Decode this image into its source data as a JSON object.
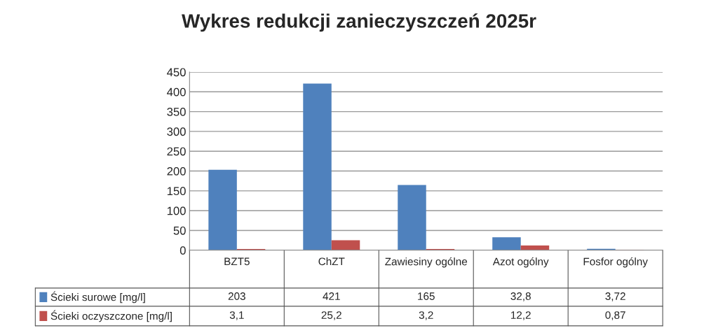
{
  "chart_data": {
    "type": "bar",
    "title": "Wykres redukcji zanieczyszczeń 2025r",
    "categories": [
      "BZT5",
      "ChZT",
      "Zawiesiny ogólne",
      "Azot ogólny",
      "Fosfor ogólny"
    ],
    "series": [
      {
        "name": "Ścieki surowe [mg/l]",
        "color": "#4f81bd",
        "values": [
          203,
          421,
          165,
          32.8,
          3.72
        ],
        "value_labels": [
          "203",
          "421",
          "165",
          "32,8",
          "3,72"
        ]
      },
      {
        "name": "Ścieki oczyszczone [mg/l]",
        "color": "#c0504d",
        "values": [
          3.1,
          25.2,
          3.2,
          12.2,
          0.87
        ],
        "value_labels": [
          "3,1",
          "25,2",
          "3,2",
          "12,2",
          "0,87"
        ]
      }
    ],
    "ylim": [
      0,
      450
    ],
    "yticks": [
      0,
      50,
      100,
      150,
      200,
      250,
      300,
      350,
      400,
      450
    ],
    "grid": "y",
    "legend": "bottom"
  }
}
